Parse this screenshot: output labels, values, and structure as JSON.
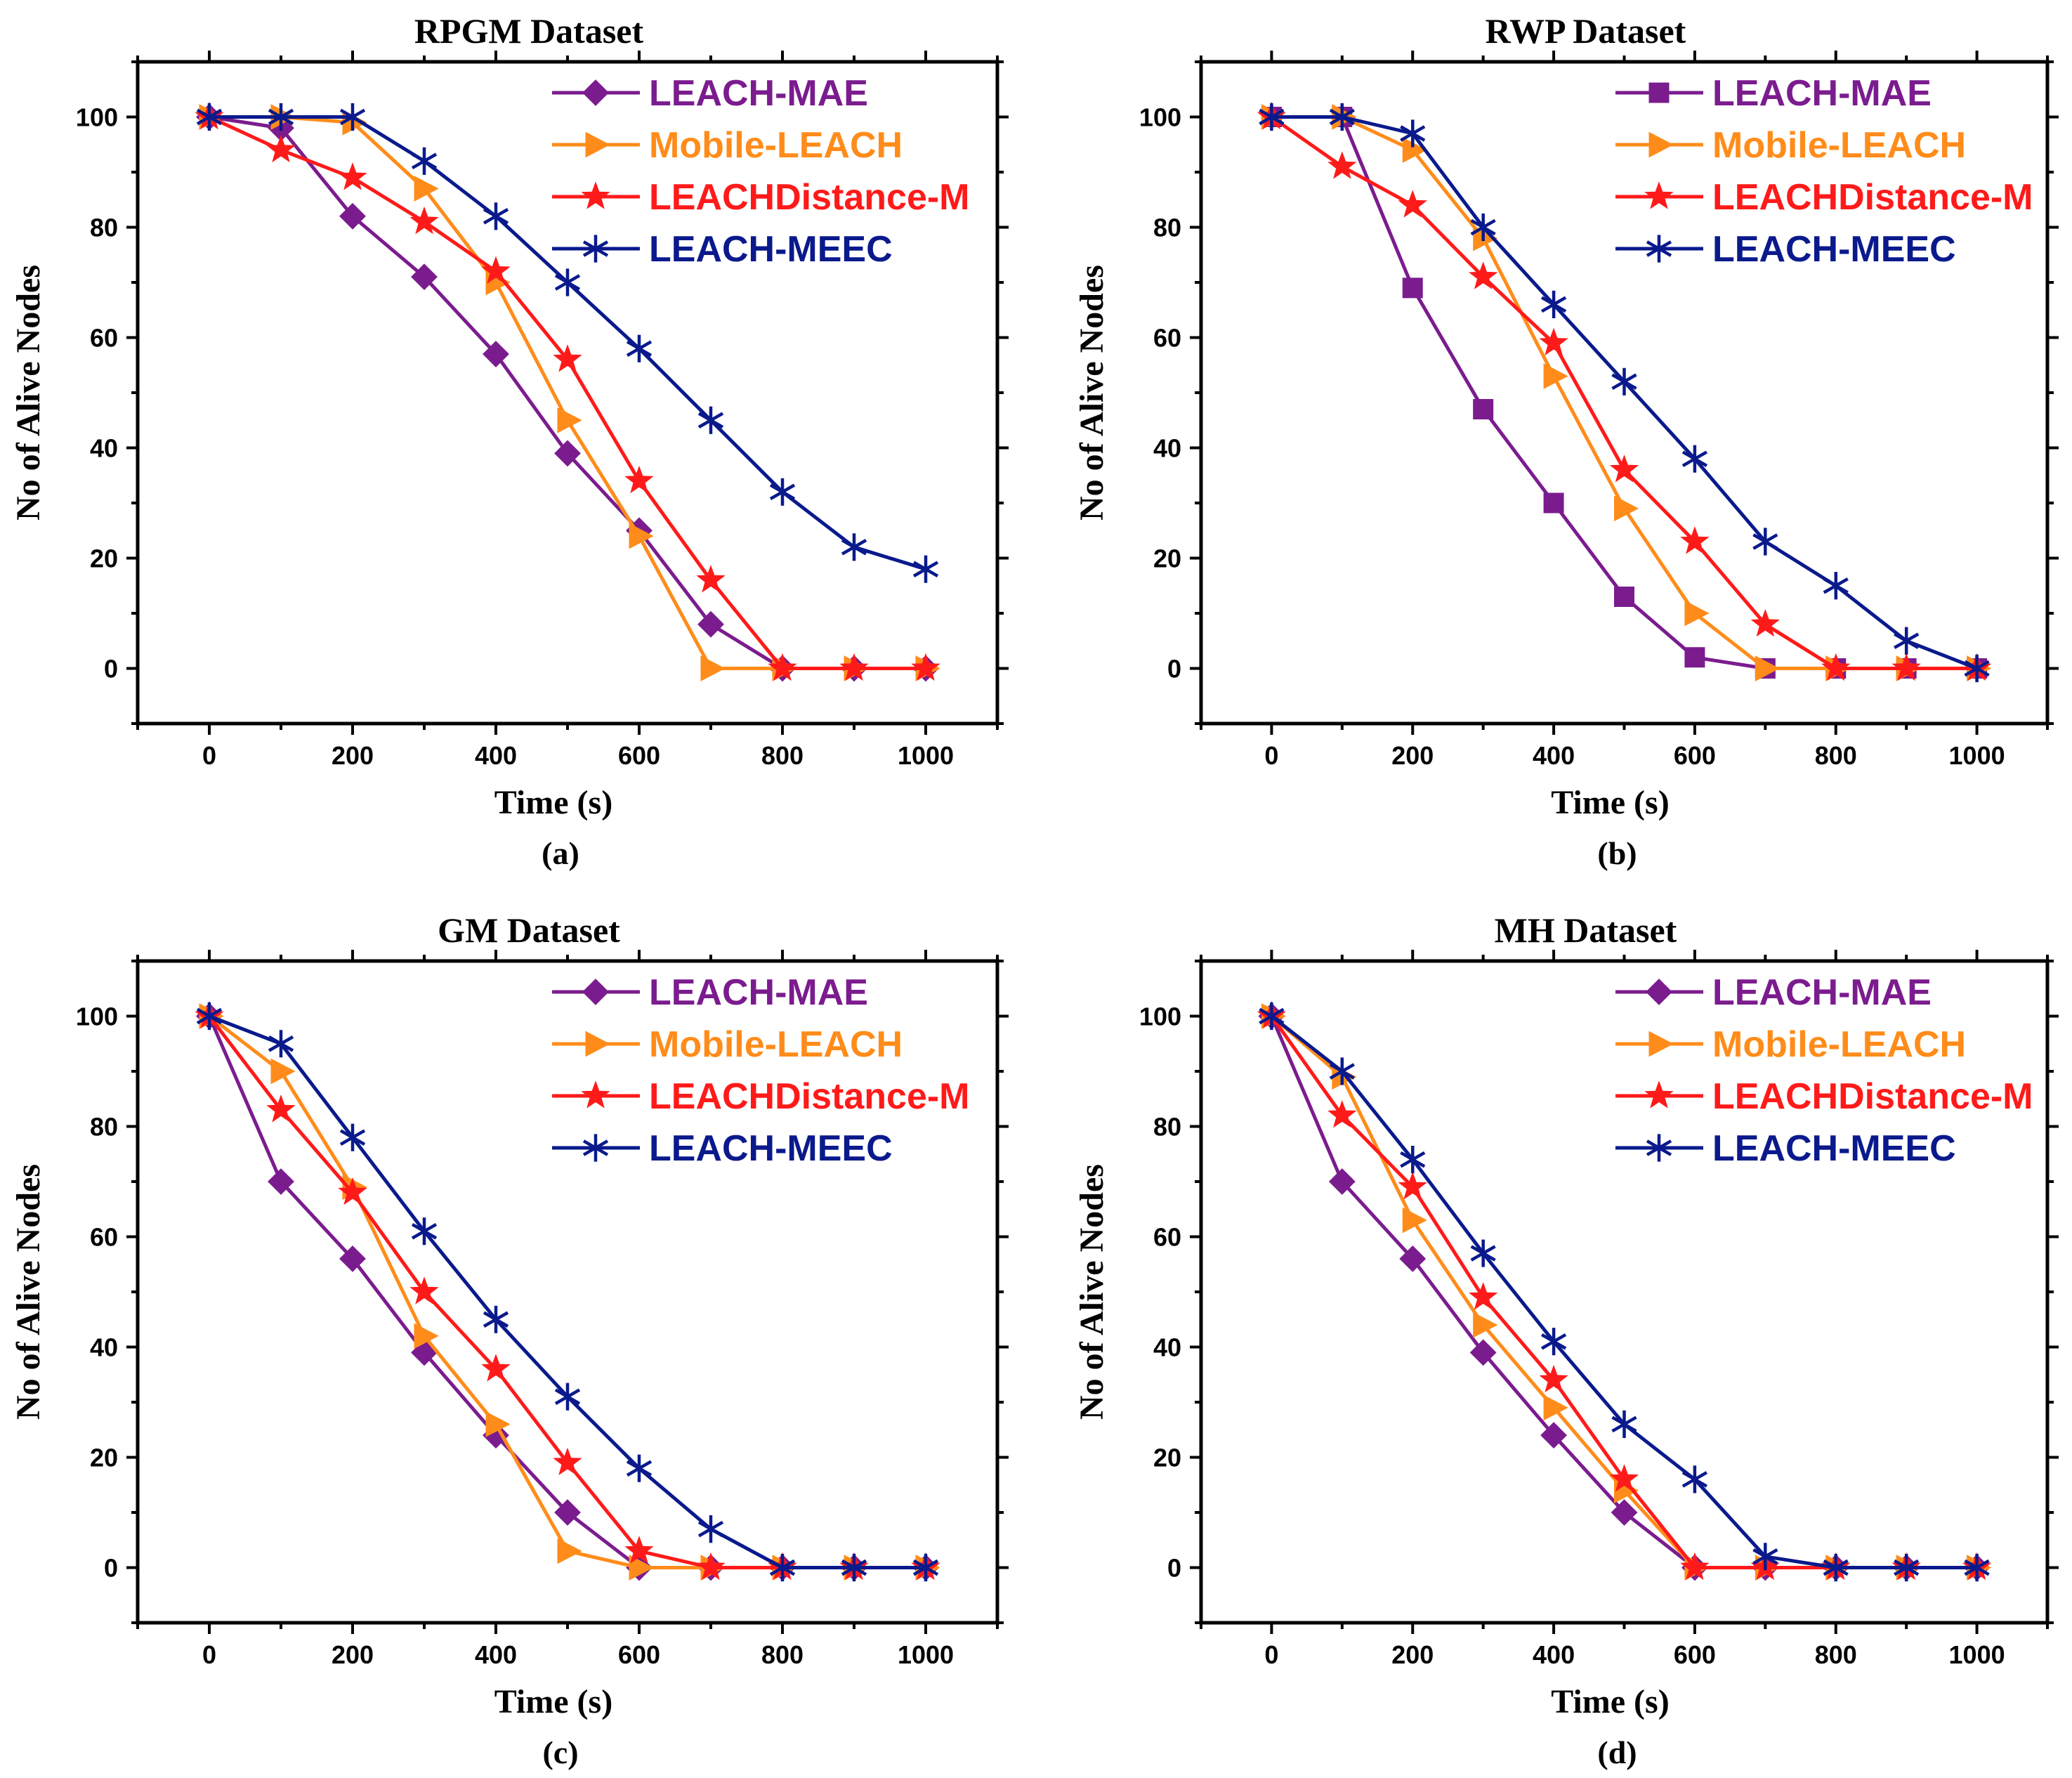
{
  "chart_data": [
    {
      "type": "line",
      "title": "RPGM Dataset",
      "panel_label": "(a)",
      "xlabel": "Time (s)",
      "ylabel": "No of Alive Nodes",
      "xlim": [
        -100,
        1100
      ],
      "ylim": [
        -10,
        110
      ],
      "xticks": [
        0,
        200,
        400,
        600,
        800,
        1000
      ],
      "yticks": [
        0,
        20,
        40,
        60,
        80,
        100
      ],
      "x": [
        0,
        100,
        200,
        300,
        400,
        500,
        600,
        700,
        800,
        900,
        1000
      ],
      "legend_position": "top-right",
      "series": [
        {
          "name": "LEACH-MAE",
          "marker": "diamond",
          "color": "#7B1C8E",
          "values": [
            100,
            98,
            82,
            71,
            57,
            39,
            25,
            8,
            0,
            0,
            0
          ]
        },
        {
          "name": "Mobile-LEACH",
          "marker": "triangle-right",
          "color": "#FF8C1A",
          "values": [
            100,
            100,
            99,
            87,
            70,
            45,
            24,
            0,
            0,
            0,
            0
          ]
        },
        {
          "name": "LEACHDistance-M",
          "marker": "star",
          "color": "#FF1A1A",
          "values": [
            100,
            94,
            89,
            81,
            72,
            56,
            34,
            16,
            0,
            0,
            0
          ]
        },
        {
          "name": "LEACH-MEEC",
          "marker": "asterisk",
          "color": "#0A1A8C",
          "values": [
            100,
            100,
            100,
            92,
            82,
            70,
            58,
            45,
            32,
            22,
            18
          ]
        }
      ]
    },
    {
      "type": "line",
      "title": "RWP Dataset",
      "panel_label": "(b)",
      "xlabel": "Time (s)",
      "ylabel": "No of Alive Nodes",
      "xlim": [
        -100,
        1100
      ],
      "ylim": [
        -10,
        110
      ],
      "xticks": [
        0,
        200,
        400,
        600,
        800,
        1000
      ],
      "yticks": [
        0,
        20,
        40,
        60,
        80,
        100
      ],
      "x": [
        0,
        100,
        200,
        300,
        400,
        500,
        600,
        700,
        800,
        900,
        1000
      ],
      "legend_position": "top-right",
      "series": [
        {
          "name": "LEACH-MAE",
          "marker": "square",
          "color": "#7B1C8E",
          "values": [
            100,
            100,
            69,
            47,
            30,
            13,
            2,
            0,
            0,
            0,
            0
          ]
        },
        {
          "name": "Mobile-LEACH",
          "marker": "triangle-right",
          "color": "#FF8C1A",
          "values": [
            100,
            100,
            94,
            78,
            53,
            29,
            10,
            0,
            0,
            0,
            0
          ]
        },
        {
          "name": "LEACHDistance-M",
          "marker": "star",
          "color": "#FF1A1A",
          "values": [
            100,
            91,
            84,
            71,
            59,
            36,
            23,
            8,
            0,
            0,
            0
          ]
        },
        {
          "name": "LEACH-MEEC",
          "marker": "asterisk",
          "color": "#0A1A8C",
          "values": [
            100,
            100,
            97,
            80,
            66,
            52,
            38,
            23,
            15,
            5,
            0
          ]
        }
      ]
    },
    {
      "type": "line",
      "title": "GM Dataset",
      "panel_label": "(c)",
      "xlabel": "Time (s)",
      "ylabel": "No of Alive Nodes",
      "xlim": [
        -100,
        1100
      ],
      "ylim": [
        -10,
        110
      ],
      "xticks": [
        0,
        200,
        400,
        600,
        800,
        1000
      ],
      "yticks": [
        0,
        20,
        40,
        60,
        80,
        100
      ],
      "x": [
        0,
        100,
        200,
        300,
        400,
        500,
        600,
        700,
        800,
        900,
        1000
      ],
      "legend_position": "top-right",
      "series": [
        {
          "name": "LEACH-MAE",
          "marker": "diamond",
          "color": "#7B1C8E",
          "values": [
            100,
            70,
            56,
            39,
            24,
            10,
            0,
            0,
            0,
            0,
            0
          ]
        },
        {
          "name": "Mobile-LEACH",
          "marker": "triangle-right",
          "color": "#FF8C1A",
          "values": [
            100,
            90,
            69,
            42,
            26,
            3,
            0,
            0,
            0,
            0,
            0
          ]
        },
        {
          "name": "LEACHDistance-M",
          "marker": "star",
          "color": "#FF1A1A",
          "values": [
            100,
            83,
            68,
            50,
            36,
            19,
            3,
            0,
            0,
            0,
            0
          ]
        },
        {
          "name": "LEACH-MEEC",
          "marker": "asterisk",
          "color": "#0A1A8C",
          "values": [
            100,
            95,
            78,
            61,
            45,
            31,
            18,
            7,
            0,
            0,
            0
          ]
        }
      ]
    },
    {
      "type": "line",
      "title": "MH Dataset",
      "panel_label": "(d)",
      "xlabel": "Time (s)",
      "ylabel": "No of Alive Nodes",
      "xlim": [
        -100,
        1100
      ],
      "ylim": [
        -10,
        110
      ],
      "xticks": [
        0,
        200,
        400,
        600,
        800,
        1000
      ],
      "yticks": [
        0,
        20,
        40,
        60,
        80,
        100
      ],
      "x": [
        0,
        100,
        200,
        300,
        400,
        500,
        600,
        700,
        800,
        900,
        1000
      ],
      "legend_position": "top-right",
      "series": [
        {
          "name": "LEACH-MAE",
          "marker": "diamond",
          "color": "#7B1C8E",
          "values": [
            100,
            70,
            56,
            39,
            24,
            10,
            0,
            0,
            0,
            0,
            0
          ]
        },
        {
          "name": "Mobile-LEACH",
          "marker": "triangle-right",
          "color": "#FF8C1A",
          "values": [
            100,
            89,
            63,
            44,
            29,
            14,
            0,
            0,
            0,
            0,
            0
          ]
        },
        {
          "name": "LEACHDistance-M",
          "marker": "star",
          "color": "#FF1A1A",
          "values": [
            100,
            82,
            69,
            49,
            34,
            16,
            0,
            0,
            0,
            0,
            0
          ]
        },
        {
          "name": "LEACH-MEEC",
          "marker": "asterisk",
          "color": "#0A1A8C",
          "values": [
            100,
            90,
            74,
            57,
            41,
            26,
            16,
            2,
            0,
            0,
            0
          ]
        }
      ]
    }
  ]
}
